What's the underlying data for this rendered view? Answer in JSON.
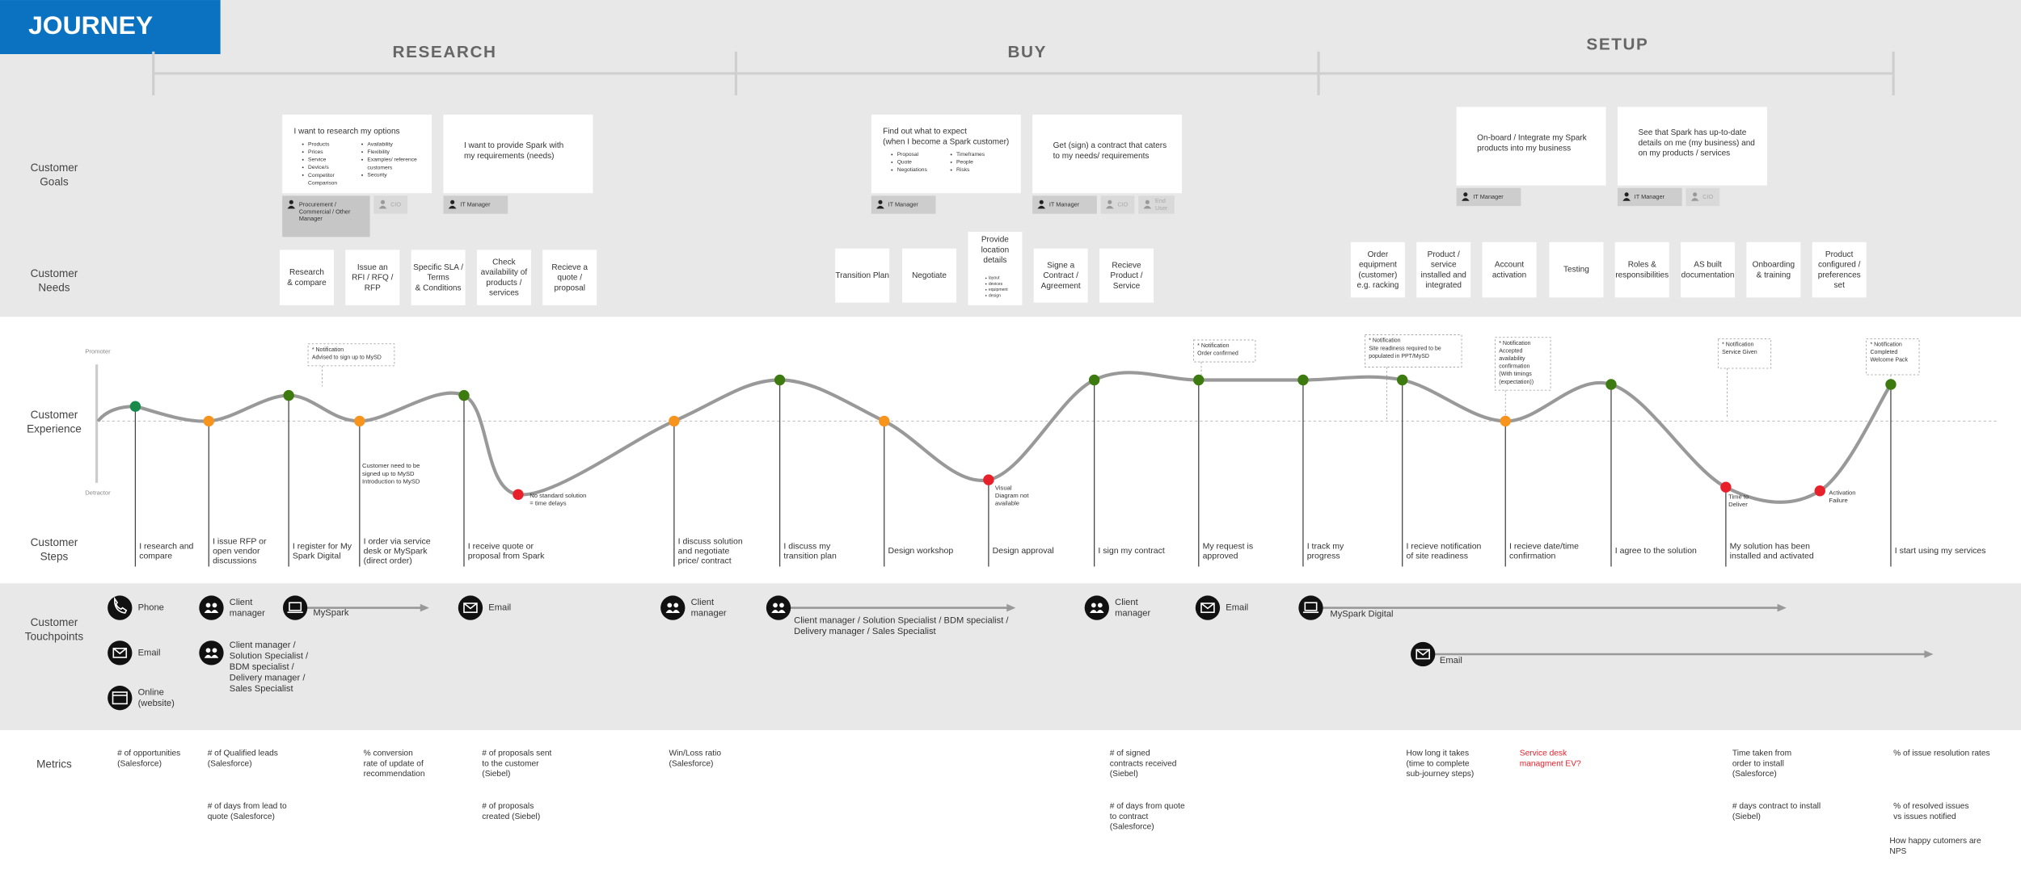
{
  "header": {
    "title": "JOURNEY"
  },
  "phases": [
    "RESEARCH",
    "BUY",
    "SETUP"
  ],
  "row_labels": {
    "goals": [
      "Customer",
      "Goals"
    ],
    "needs": [
      "Customer",
      "Needs"
    ],
    "experience": [
      "Customer",
      "Experience"
    ],
    "steps": [
      "Customer",
      "Steps"
    ],
    "touchpoints": [
      "Customer",
      "Touchpoints"
    ],
    "metrics": "Metrics"
  },
  "goals": [
    {
      "title": [
        "I want to research my options"
      ],
      "bullets": [
        [
          "Products",
          "Prices",
          "Service",
          "Device/s",
          [
            "Competitor",
            "Comparison"
          ]
        ],
        [
          "Availability",
          "Flexibility",
          [
            "Examples/ reference",
            "customers"
          ],
          "Security"
        ]
      ],
      "personas": [
        {
          "label": [
            "Procurement /",
            "Commercial / Other",
            "Manager"
          ],
          "active": true
        },
        {
          "label": "CIO",
          "active": false
        }
      ]
    },
    {
      "title": [
        "I want to provide Spark with",
        "my requirements (needs)"
      ],
      "personas": [
        {
          "label": "IT Manager",
          "active": true
        }
      ]
    },
    {
      "title": [
        "Find out what to expect",
        "(when I become a Spark customer)"
      ],
      "bullets": [
        [
          "Proposal",
          "Quote",
          "Negotiations"
        ],
        [
          "Timeframes",
          "People",
          "Risks"
        ]
      ],
      "personas": [
        {
          "label": "IT Manager",
          "active": true
        }
      ]
    },
    {
      "title": [
        "Get (sign) a contract that caters",
        "to my needs/ requirements"
      ],
      "personas": [
        {
          "label": "IT Manager",
          "active": true
        },
        {
          "label": "CIO",
          "active": false
        },
        {
          "label": [
            "End",
            "User"
          ],
          "active": false
        }
      ]
    },
    {
      "title": [
        "On-board / Integrate my Spark",
        "products into my business"
      ],
      "personas": [
        {
          "label": "IT Manager",
          "active": true
        }
      ]
    },
    {
      "title": [
        "See that Spark has up-to-date",
        "details on me (my business) and",
        "on my products / services"
      ],
      "personas": [
        {
          "label": "IT Manager",
          "active": true
        },
        {
          "label": "CIO",
          "active": false
        }
      ]
    }
  ],
  "needs": [
    {
      "text": [
        "Research",
        "& compare"
      ]
    },
    {
      "text": [
        "Issue an",
        "RFI / RFQ /",
        "RFP"
      ]
    },
    {
      "text": [
        "Specific SLA /",
        "Terms",
        "& Conditions"
      ]
    },
    {
      "text": [
        "Check",
        "availability of",
        "products /",
        "services"
      ]
    },
    {
      "text": [
        "Recieve a",
        "quote /",
        "proposal"
      ]
    },
    {
      "text": "Transition Plan"
    },
    {
      "text": "Negotiate"
    },
    {
      "text": [
        "Provide",
        "location",
        "details"
      ],
      "bullets": [
        "layout",
        "devices",
        "equipment",
        "design"
      ]
    },
    {
      "text": [
        "Signe a",
        "Contract /",
        "Agreement"
      ]
    },
    {
      "text": [
        "Recieve",
        "Product /",
        "Service"
      ]
    },
    {
      "text": [
        "Order",
        "equipment",
        "(customer)",
        "e.g. racking"
      ]
    },
    {
      "text": [
        "Product /",
        "service",
        "installed and",
        "integrated"
      ]
    },
    {
      "text": [
        "Account",
        "activation"
      ]
    },
    {
      "text": "Testing"
    },
    {
      "text": [
        "Roles &",
        "responsibilities"
      ]
    },
    {
      "text": [
        "AS built",
        "documentation"
      ]
    },
    {
      "text": [
        "Onboarding",
        "& training"
      ]
    },
    {
      "text": [
        "Product",
        "configured /",
        "preferences",
        "set"
      ]
    }
  ],
  "experience": {
    "top_label": "Promoter",
    "bottom_label": "Detractor",
    "ylim": [
      -1,
      1
    ],
    "points": [
      {
        "level": 0.2,
        "color": "#178a4c",
        "step": [
          "I research and",
          "compare"
        ]
      },
      {
        "level": 0,
        "color": "#f7941d",
        "step": [
          "I issue RFP or",
          "open vendor",
          "discussions"
        ]
      },
      {
        "level": 0.35,
        "color": "#3d7a0f",
        "step": [
          "I register for My",
          "Spark Digital"
        ]
      },
      {
        "level": 0,
        "color": "#f7941d",
        "step": [
          "I order via service",
          "desk or MySpark",
          "(direct order)"
        ],
        "note": [
          "Customer need to be",
          "signed up to MySD",
          "Introduction to MySD"
        ]
      },
      {
        "level": 0.35,
        "color": "#3d7a0f",
        "step": [
          "I receive quote or",
          "proposal from Spark"
        ]
      },
      {
        "level": -1,
        "color": "#e8202a",
        "note": [
          "No standard solution",
          "= time delays"
        ]
      },
      {
        "level": 0,
        "color": "#f7941d",
        "step": [
          "I discuss solution",
          "and negotiate",
          "price/ contract"
        ]
      },
      {
        "level": 0.56,
        "color": "#3d7a0f",
        "step": [
          "I discuss my",
          "transition plan"
        ]
      },
      {
        "level": 0,
        "color": "#f7941d",
        "step": "Design workshop"
      },
      {
        "level": -0.8,
        "color": "#e8202a",
        "step": "Design approval",
        "note": [
          "Visual",
          "Diagram not",
          "available"
        ]
      },
      {
        "level": 0.56,
        "color": "#3d7a0f",
        "step": "I sign my contract"
      },
      {
        "level": 0.56,
        "color": "#3d7a0f",
        "step": [
          "My request is",
          "approved"
        ]
      },
      {
        "level": 0.56,
        "color": "#3d7a0f",
        "step": [
          "I track my",
          "progress"
        ]
      },
      {
        "level": 0.56,
        "color": "#3d7a0f",
        "step": [
          "I recieve notification",
          "of site readiness"
        ]
      },
      {
        "level": 0,
        "color": "#f7941d",
        "step": [
          "I recieve date/time",
          "confirmation"
        ]
      },
      {
        "level": 0.5,
        "color": "#3d7a0f",
        "step": "I agree to the solution"
      },
      {
        "level": -0.9,
        "color": "#e8202a",
        "step": [
          "My solution has been",
          "installed and activated"
        ],
        "note": [
          "Time to",
          "Deliver"
        ]
      },
      {
        "level": -0.95,
        "color": "#e8202a",
        "note": [
          "Activation",
          "Failure"
        ]
      },
      {
        "level": 0.5,
        "color": "#3d7a0f",
        "step": "I start using my services"
      }
    ]
  },
  "notifications": [
    [
      "* Notification",
      "Advised to sign up to MySD"
    ],
    [
      "* Notification",
      "Order confirmed"
    ],
    [
      "* Notification",
      "Site readiness required to be",
      "populated in PPT/MySD"
    ],
    [
      "* Notification",
      "Accepted",
      "availability",
      "confirmation",
      "(With timings",
      "(expectation))"
    ],
    [
      "* Notification",
      "Service Given"
    ],
    [
      "* Notification",
      "Completed",
      "Welcome Pack"
    ]
  ],
  "touchpoints": [
    "Phone",
    "Email",
    [
      "Online",
      "(website)"
    ],
    [
      "Client",
      "manager"
    ],
    [
      "Client manager /",
      "Solution Specialist /",
      "BDM specialist /",
      "Delivery manager /",
      "Sales Specialist"
    ],
    "MySpark",
    "Email",
    [
      "Client",
      "manager"
    ],
    [
      "Client manager / Solution Specialist / BDM specialist /",
      "Delivery manager / Sales Specialist"
    ],
    [
      "Client",
      "manager"
    ],
    "Email",
    "MySpark Digital",
    "Email"
  ],
  "metrics": [
    {
      "text": [
        "# of opportunities",
        "(Salesforce)"
      ]
    },
    {
      "text": [
        "# of Qualified leads",
        "(Salesforce)"
      ]
    },
    {
      "text": [
        "# of days from lead to",
        "quote (Salesforce)"
      ]
    },
    {
      "text": [
        "% conversion",
        "rate of update of",
        "recommendation"
      ]
    },
    {
      "text": [
        "# of proposals sent",
        "to the customer",
        "(Siebel)"
      ]
    },
    {
      "text": [
        "# of proposals",
        "created (Siebel)"
      ]
    },
    {
      "text": [
        "Win/Loss ratio",
        "(Salesforce)"
      ]
    },
    {
      "text": [
        "# of signed",
        "contracts received",
        "(Siebel)"
      ]
    },
    {
      "text": [
        "# of days from quote",
        "to contract",
        "(Salesforce)"
      ]
    },
    {
      "text": [
        "How long it takes",
        "(time to complete",
        "sub-journey steps)"
      ]
    },
    {
      "text": [
        "Service desk",
        "managment EV?"
      ],
      "color": "#e8202a"
    },
    {
      "text": [
        "Time taken from",
        "order to install",
        "(Salesforce)"
      ]
    },
    {
      "text": [
        "# days contract to install",
        "(Siebel)"
      ]
    },
    {
      "text": "% of issue resolution rates"
    },
    {
      "text": [
        "% of resolved issues",
        "vs issues notified"
      ]
    },
    {
      "text": [
        "How happy cutomers are",
        "NPS"
      ]
    }
  ]
}
